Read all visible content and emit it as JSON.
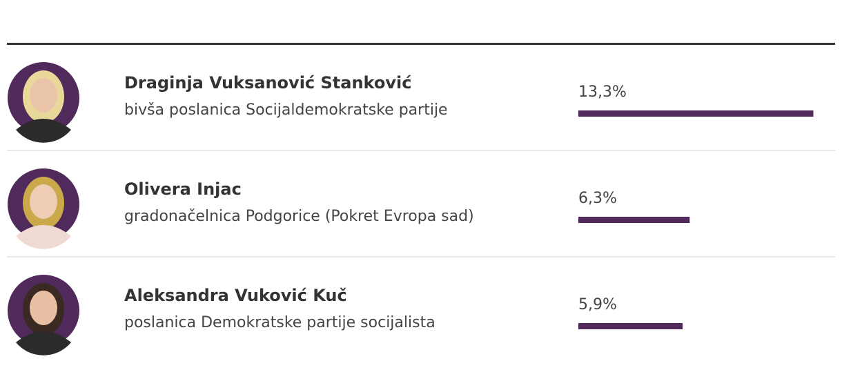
{
  "chart_data": {
    "type": "bar",
    "categories": [
      "Draginja Vuksanović Stanković",
      "Olivera Injac",
      "Aleksandra Vuković Kuč"
    ],
    "descriptions": [
      "bivša poslanica Socijaldemokratske partije",
      "gradonačelnica Podgorice (Pokret Evropa sad)",
      "poslanica Demokratske partije socijalista"
    ],
    "values": [
      13.3,
      6.3,
      5.9
    ],
    "value_labels": [
      "13,3%",
      "6,3%",
      "5,9%"
    ],
    "color": "#4f2a5a"
  }
}
